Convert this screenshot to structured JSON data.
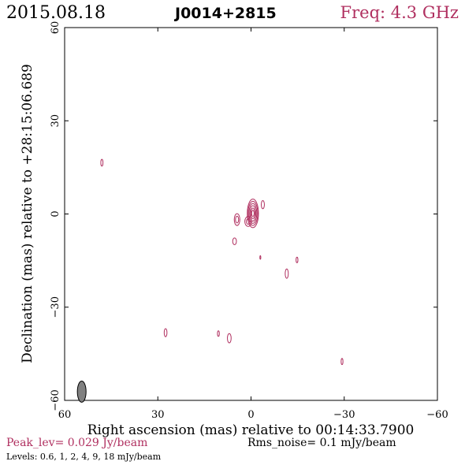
{
  "header": {
    "date": "2015.08.18",
    "source": "J0014+2815",
    "freq": "Freq: 4.3 GHz"
  },
  "footer": {
    "peak": "Peak_lev=  0.029 Jy/beam",
    "rms": "Rms_noise=   0.1 mJy/beam",
    "levels": "Levels: 0.6,    1,    2,    4,    9,   18 mJy/beam"
  },
  "colors": {
    "contour": "#b03060",
    "axis": "#000000",
    "beam": "#808080"
  },
  "chart_data": {
    "type": "contour",
    "title": "J0014+2815",
    "xlabel": "Right ascension (mas) relative to 00:14:33.7900",
    "ylabel": "Declination (mas) relative to +28:15:06.689",
    "xlim": [
      60,
      -60
    ],
    "ylim": [
      -60,
      60
    ],
    "xticks": [
      60,
      30,
      0,
      -30,
      -60
    ],
    "yticks": [
      60,
      30,
      0,
      -30,
      -60
    ],
    "xtick_labels": [
      "60",
      "30",
      "0",
      "−30",
      "−60"
    ],
    "ytick_labels": [
      "60",
      "30",
      "0",
      "−30",
      "−60"
    ],
    "contour_levels_mJy": [
      0.6,
      1,
      2,
      4,
      9,
      18
    ],
    "peak_Jy_per_beam": 0.029,
    "rms_noise_mJy_per_beam": 0.1,
    "beam": {
      "x": 54.5,
      "y": -57.2,
      "major_mas": 3.4,
      "minor_mas": 1.4,
      "pa_deg": 0
    },
    "components": [
      {
        "name": "core",
        "x": -0.6,
        "y": 0.2,
        "rings": [
          [
            1.8,
            4.6
          ],
          [
            1.55,
            3.9
          ],
          [
            1.25,
            3.2
          ],
          [
            0.95,
            2.5
          ],
          [
            0.65,
            1.7
          ],
          [
            0.4,
            1.0
          ]
        ]
      },
      {
        "name": "core-sw",
        "x": 0.9,
        "y": -2.4,
        "rings": [
          [
            1.1,
            1.6
          ],
          [
            0.6,
            0.9
          ]
        ]
      },
      {
        "name": "blob-w",
        "x": 4.5,
        "y": -1.8,
        "rings": [
          [
            0.9,
            1.9
          ],
          [
            0.5,
            1.1
          ]
        ]
      },
      {
        "name": "blob-e",
        "x": -3.8,
        "y": 3.0,
        "rings": [
          [
            0.5,
            1.3
          ]
        ]
      },
      {
        "name": "blob-sw",
        "x": 5.3,
        "y": -8.8,
        "rings": [
          [
            0.6,
            1.1
          ]
        ]
      },
      {
        "name": "spot-nw",
        "x": 48.0,
        "y": 16.5,
        "rings": [
          [
            0.35,
            1.1
          ]
        ]
      },
      {
        "name": "spot-1",
        "x": -3.0,
        "y": -14.0,
        "rings": [
          [
            0.12,
            0.6
          ]
        ]
      },
      {
        "name": "spot-2",
        "x": -14.8,
        "y": -14.8,
        "rings": [
          [
            0.3,
            0.9
          ]
        ]
      },
      {
        "name": "spot-3",
        "x": -11.5,
        "y": -19.2,
        "rings": [
          [
            0.5,
            1.5
          ]
        ]
      },
      {
        "name": "spot-4",
        "x": 27.5,
        "y": -38.2,
        "rings": [
          [
            0.45,
            1.3
          ]
        ]
      },
      {
        "name": "spot-5",
        "x": 10.5,
        "y": -38.5,
        "rings": [
          [
            0.3,
            0.9
          ]
        ]
      },
      {
        "name": "spot-6",
        "x": 7.0,
        "y": -40.0,
        "rings": [
          [
            0.6,
            1.5
          ]
        ]
      },
      {
        "name": "spot-7",
        "x": -29.3,
        "y": -47.5,
        "rings": [
          [
            0.3,
            1.0
          ]
        ]
      }
    ]
  }
}
